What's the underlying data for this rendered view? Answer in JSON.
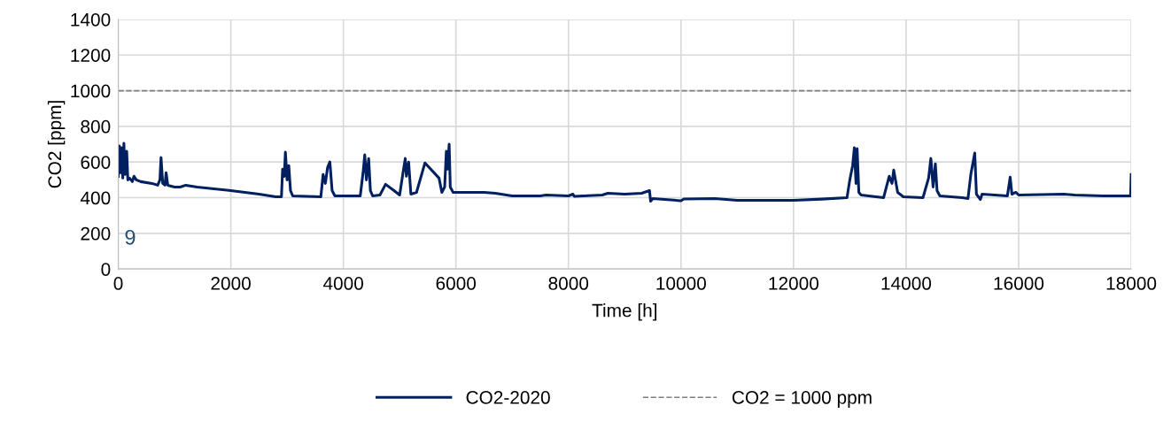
{
  "chart_data": {
    "type": "line",
    "xlabel": "Time [h]",
    "ylabel": "CO2 [ppm]",
    "xlim": [
      0,
      18000
    ],
    "xticks": [
      0,
      2000,
      4000,
      6000,
      8000,
      10000,
      12000,
      14000,
      16000,
      18000
    ],
    "ylim": [
      0,
      1400
    ],
    "yticks": [
      0,
      200,
      400,
      600,
      800,
      1000,
      1200,
      1400
    ],
    "grid": true,
    "legend": "bottom",
    "ref_lines": [
      {
        "axis": "y",
        "value": 1000,
        "label": "CO2 = 1000 ppm",
        "color": "#808080",
        "line_style": "dashed"
      }
    ],
    "annotations": [
      "9"
    ],
    "series": [
      {
        "name": "CO2-2020",
        "color": "#002060",
        "x": [
          0,
          20,
          40,
          60,
          80,
          100,
          120,
          150,
          170,
          200,
          250,
          280,
          320,
          400,
          600,
          700,
          740,
          760,
          790,
          830,
          850,
          880,
          1000,
          1100,
          1200,
          1400,
          2000,
          2500,
          2800,
          2900,
          2920,
          2950,
          2970,
          3000,
          3030,
          3060,
          3100,
          3600,
          3640,
          3680,
          3720,
          3760,
          3800,
          3850,
          4300,
          4350,
          4380,
          4410,
          4450,
          4480,
          4520,
          4650,
          4750,
          4900,
          5000,
          5060,
          5100,
          5120,
          5160,
          5200,
          5300,
          5450,
          5700,
          5750,
          5800,
          5830,
          5850,
          5880,
          5900,
          5950,
          6500,
          6700,
          7000,
          7500,
          7600,
          8000,
          8080,
          8100,
          8600,
          8700,
          9000,
          9300,
          9440,
          9460,
          9500,
          10000,
          10050,
          10600,
          11000,
          12000,
          12500,
          12950,
          13000,
          13050,
          13080,
          13110,
          13130,
          13160,
          13200,
          13600,
          13650,
          13700,
          13750,
          13780,
          13850,
          13950,
          14300,
          14400,
          14440,
          14480,
          14520,
          14550,
          14600,
          15000,
          15100,
          15150,
          15220,
          15250,
          15320,
          15350,
          15800,
          15850,
          15880,
          15950,
          16000,
          16800,
          17000,
          17500,
          17990,
          18000
        ],
        "values": [
          520,
          690,
          540,
          680,
          510,
          705,
          530,
          660,
          500,
          510,
          490,
          520,
          500,
          490,
          480,
          470,
          500,
          625,
          480,
          470,
          540,
          470,
          460,
          460,
          470,
          460,
          440,
          420,
          405,
          405,
          560,
          520,
          655,
          500,
          580,
          440,
          410,
          405,
          530,
          480,
          570,
          600,
          440,
          410,
          410,
          540,
          640,
          500,
          620,
          440,
          410,
          415,
          475,
          440,
          415,
          540,
          620,
          520,
          600,
          420,
          430,
          595,
          510,
          430,
          460,
          660,
          560,
          700,
          460,
          430,
          430,
          425,
          410,
          410,
          415,
          410,
          420,
          408,
          415,
          425,
          420,
          425,
          440,
          380,
          395,
          383,
          393,
          395,
          385,
          385,
          392,
          400,
          500,
          580,
          680,
          480,
          675,
          430,
          415,
          400,
          460,
          520,
          480,
          555,
          430,
          405,
          400,
          510,
          620,
          460,
          590,
          440,
          410,
          400,
          395,
          530,
          650,
          420,
          390,
          420,
          410,
          515,
          420,
          430,
          415,
          420,
          415,
          410,
          410,
          530
        ]
      }
    ]
  }
}
